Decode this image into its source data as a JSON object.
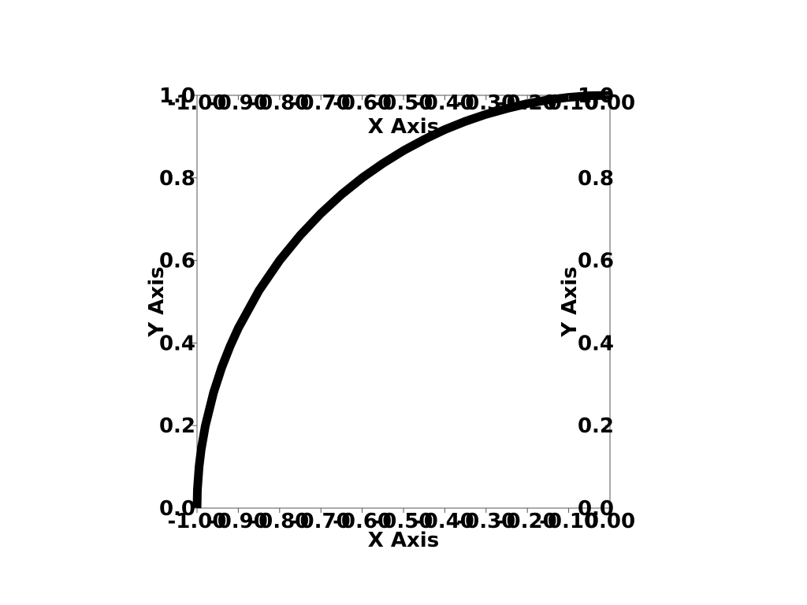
{
  "chart_data": {
    "type": "line",
    "title": "",
    "xlabel": "X Axis",
    "ylabel": "Y Axis",
    "xlim": [
      -1.0,
      0.0
    ],
    "ylim": [
      0.0,
      1.0
    ],
    "x_ticks": [
      -1.0,
      -0.9,
      -0.8,
      -0.7,
      -0.6,
      -0.5,
      -0.4,
      -0.3,
      -0.2,
      -0.1,
      0.0
    ],
    "x_tick_labels": [
      "-1.00",
      "-0.90",
      "-0.80",
      "-0.70",
      "-0.60",
      "-0.50",
      "-0.40",
      "-0.30",
      "-0.20",
      "-0.10",
      "0.00"
    ],
    "y_ticks": [
      0.0,
      0.2,
      0.4,
      0.6,
      0.8,
      1.0
    ],
    "y_tick_labels": [
      "0.0",
      "0.2",
      "0.4",
      "0.6",
      "0.8",
      "1.0"
    ],
    "axes_mirrored": true,
    "grid": false,
    "series": [
      {
        "color": "#000000",
        "x": [
          -1.0,
          -0.999,
          -0.995,
          -0.99,
          -0.98,
          -0.96,
          -0.94,
          -0.92,
          -0.9,
          -0.85,
          -0.8,
          -0.75,
          -0.7,
          -0.65,
          -0.6,
          -0.55,
          -0.5,
          -0.45,
          -0.4,
          -0.35,
          -0.3,
          -0.25,
          -0.2,
          -0.15,
          -0.1,
          -0.05,
          0.0
        ],
        "y": [
          0.0,
          0.045,
          0.1,
          0.141,
          0.199,
          0.28,
          0.341,
          0.392,
          0.436,
          0.527,
          0.6,
          0.661,
          0.714,
          0.76,
          0.8,
          0.835,
          0.866,
          0.893,
          0.917,
          0.937,
          0.954,
          0.968,
          0.98,
          0.989,
          0.995,
          0.999,
          1.0
        ]
      }
    ]
  }
}
